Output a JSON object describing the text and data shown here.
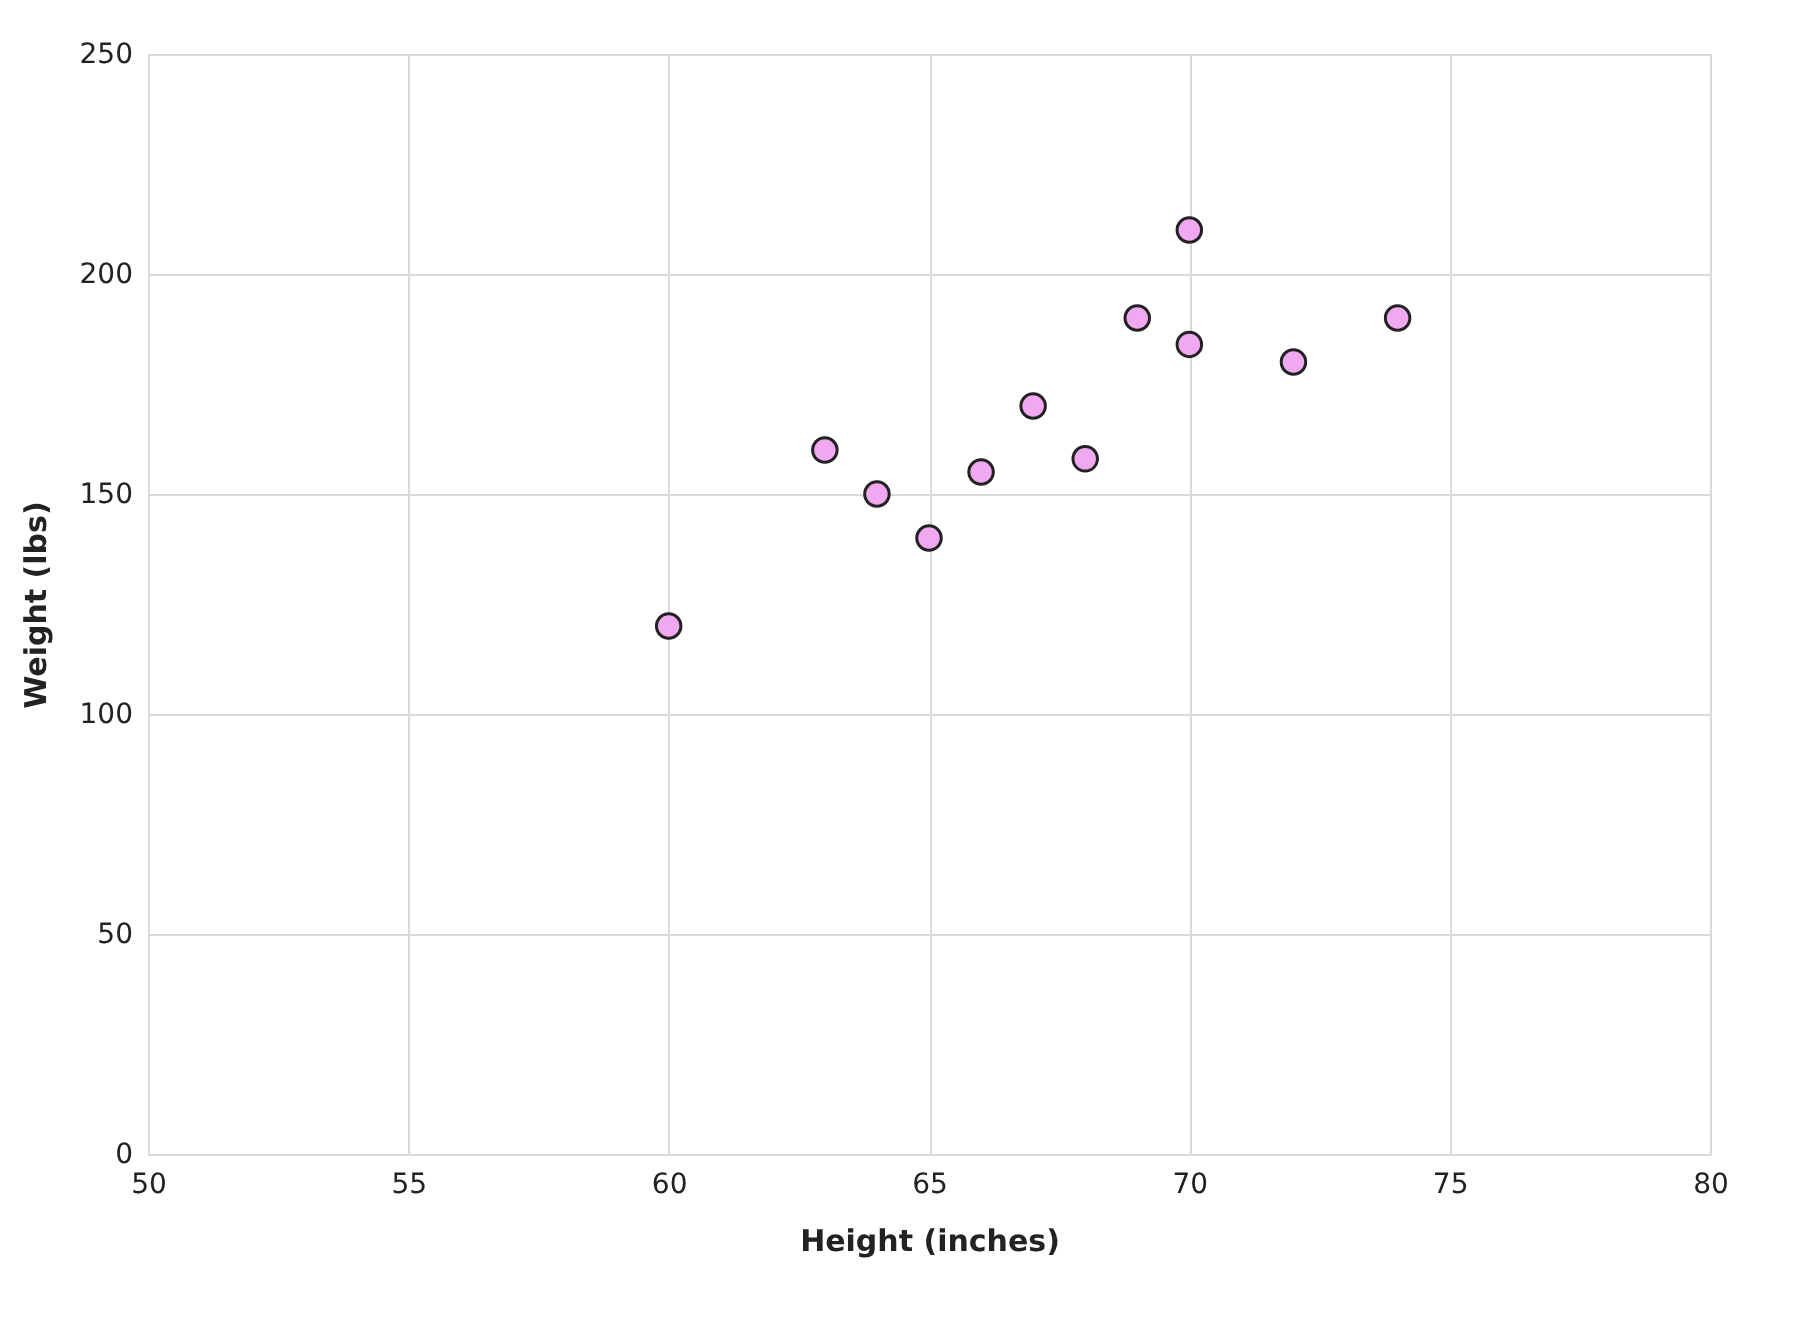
{
  "chart_data": {
    "type": "scatter",
    "xlabel": "Height (inches)",
    "ylabel": "Weight (lbs)",
    "x": [
      60,
      63,
      64,
      65,
      66,
      67,
      68,
      69,
      70,
      70,
      72,
      74
    ],
    "series": [
      {
        "color": "#f0a8f0",
        "values": [
          120,
          160,
          150,
          140,
          155,
          170,
          158,
          190,
          210,
          184,
          180,
          190
        ]
      }
    ],
    "xlim": [
      50,
      80
    ],
    "xticks": [
      50,
      55,
      60,
      65,
      70,
      75,
      80
    ],
    "ylim": [
      0,
      250
    ],
    "yticks": [
      0,
      50,
      100,
      150,
      200,
      250
    ],
    "grid": true,
    "marker": "circle"
  }
}
